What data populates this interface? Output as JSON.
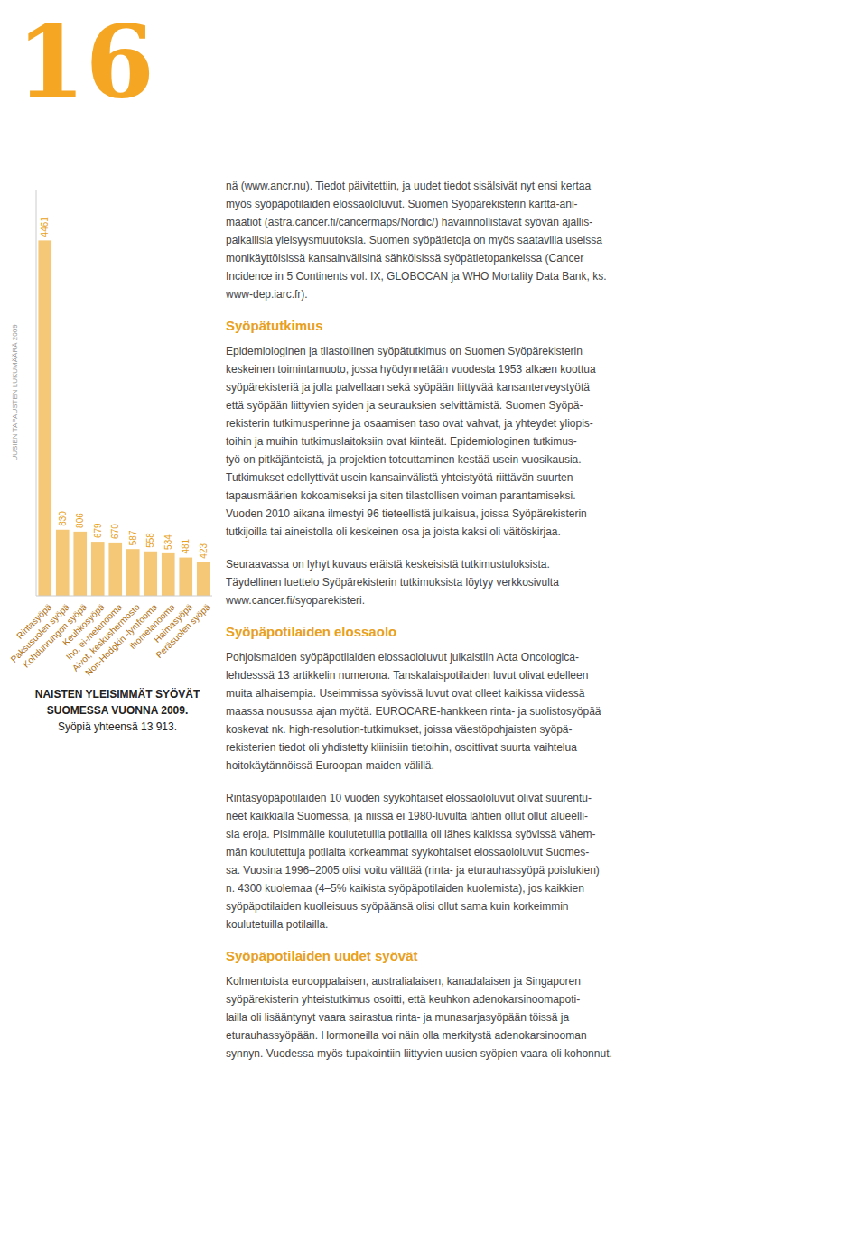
{
  "chart_data": {
    "type": "bar",
    "title": "NAISTEN YLEISIMMÄT SYÖVÄT SUOMESSA VUONNA 2009.",
    "subtitle": "Syöpiä yhteensä 13 913.",
    "ylabel": "UUSIEN TAPAUSTEN LUKUMÄÄRÄ 2009",
    "categories": [
      "Rintasyöpä",
      "Paksusuolen syöpä",
      "Kohdunrungon syöpä",
      "Keuhkosyöpä",
      "Iho, ei-melanooma",
      "Aivot, keskushermosto",
      "Non-Hodgkin -lymfooma",
      "Ihomelanooma",
      "Haimasyöpä",
      "Peräsuolen syöpä"
    ],
    "values": [
      4461,
      830,
      806,
      679,
      670,
      587,
      558,
      534,
      481,
      423
    ],
    "color": "#F5C878",
    "ylim": [
      0,
      5100
    ],
    "data_labels": true,
    "tick_labels": "x",
    "grid": false
  },
  "page": {
    "page_number": "16",
    "intro": [
      "nä (www.ancr.nu). Tiedot päivitettiin, ja uudet tiedot sisälsivät nyt ensi kertaa",
      "myös syöpäpotilaiden elossaololuvut. Suomen Syöpärekisterin kartta-ani-",
      "maatiot (astra.cancer.fi/cancermaps/Nordic/) havainnollistavat syövän ajallis-",
      "paikallisia yleisyysmuutoksia. Suomen syöpätietoja on myös saatavilla useissa",
      "monikäyttöisissä kansainvälisinä sähköisissä syöpätietopankeissa (Cancer",
      "Incidence in 5 Continents vol. IX, GLOBOCAN ja WHO Mortality Data Bank, ks.",
      "www-dep.iarc.fr)."
    ],
    "sections": [
      {
        "heading": "Syöpätutkimus",
        "paragraphs": [
          [
            "Epidemiologinen ja tilastollinen syöpätutkimus on Suomen Syöpärekisterin",
            "keskeinen toimintamuoto, jossa hyödynnetään vuodesta 1953 alkaen koottua",
            "syöpärekisteriä ja jolla palvellaan sekä syöpään liittyvää kansanterveystyötä",
            "että syöpään liittyvien syiden ja seurauksien selvittämistä. Suomen Syöpä-",
            "rekisterin tutkimusperinne ja osaamisen taso ovat vahvat, ja yhteydet yliopis-",
            "toihin ja muihin tutkimuslaitoksiin ovat kiinteät. Epidemiologinen tutkimus-",
            "työ on pitkäjänteistä, ja projektien toteuttaminen kestää usein vuosikausia.",
            "Tutkimukset edellyttivät usein kansainvälistä yhteistyötä riittävän suurten",
            "tapausmäärien kokoamiseksi ja siten tilastollisen voiman parantamiseksi.",
            "Vuoden 2010 aikana ilmestyi 96 tieteellistä julkaisua, joissa Syöpärekisterin",
            "tutkijoilla tai aineistolla oli keskeinen osa ja joista kaksi oli väitöskirjaa."
          ],
          [
            "Seuraavassa on lyhyt kuvaus eräistä keskeisistä tutkimustuloksista.",
            "Täydellinen luettelo Syöpärekisterin tutkimuksista löytyy verkkosivulta",
            "www.cancer.fi/syoparekisteri."
          ]
        ]
      },
      {
        "heading": "Syöpäpotilaiden elossaolo",
        "paragraphs": [
          [
            "Pohjoismaiden syöpäpotilaiden elossaololuvut julkaistiin Acta Oncologica-",
            "lehdesssä 13 artikkelin numerona. Tanskalaispotilaiden luvut olivat edelleen",
            "muita alhaisempia. Useimmissa syövissä luvut ovat olleet kaikissa viidessä",
            "maassa nousussa ajan myötä. EUROCARE-hankkeen rinta- ja suolistosyöpää",
            "koskevat nk. high-resolution-tutkimukset, joissa väestöpohjaisten syöpä-",
            "rekisterien tiedot oli yhdistetty kliinisiin tietoihin, osoittivat suurta vaihtelua",
            "hoitokäytännöissä Euroopan maiden välillä."
          ],
          [
            "Rintasyöpäpotilaiden 10 vuoden syykohtaiset elossaololuvut olivat suurentu-",
            "neet kaikkialla Suomessa, ja niissä ei 1980-luvulta lähtien ollut ollut alueelli-",
            "sia eroja. Pisimmälle koulutetuilla potilailla oli lähes kaikissa syövissä vähem-",
            "män koulutettuja potilaita korkeammat syykohtaiset elossaololuvut Suomes-",
            "sa. Vuosina 1996–2005 olisi voitu välttää (rinta- ja eturauhassyöpä poislukien)",
            "n. 4300 kuolemaa (4–5% kaikista syöpäpotilaiden kuolemista), jos kaikkien",
            "syöpäpotilaiden kuolleisuus syöpäänsä olisi ollut sama kuin korkeimmin",
            "koulutetuilla potilailla."
          ]
        ]
      },
      {
        "heading": "Syöpäpotilaiden uudet syövät",
        "paragraphs": [
          [
            "Kolmentoista eurooppalaisen, australialaisen, kanadalaisen ja Singaporen",
            "syöpärekisterin yhteistutkimus osoitti, että keuhkon adenokarsinoomapoti-",
            "lailla oli lisääntynyt vaara sairastua rinta- ja munasarjasyöpään töissä ja",
            "eturauhassyöpään. Hormoneilla voi näin olla merkitystä adenokarsinooman",
            "synnyn. Vuodessa myös tupakointiin liittyvien uusien syöpien vaara oli kohonnut."
          ]
        ]
      }
    ]
  }
}
